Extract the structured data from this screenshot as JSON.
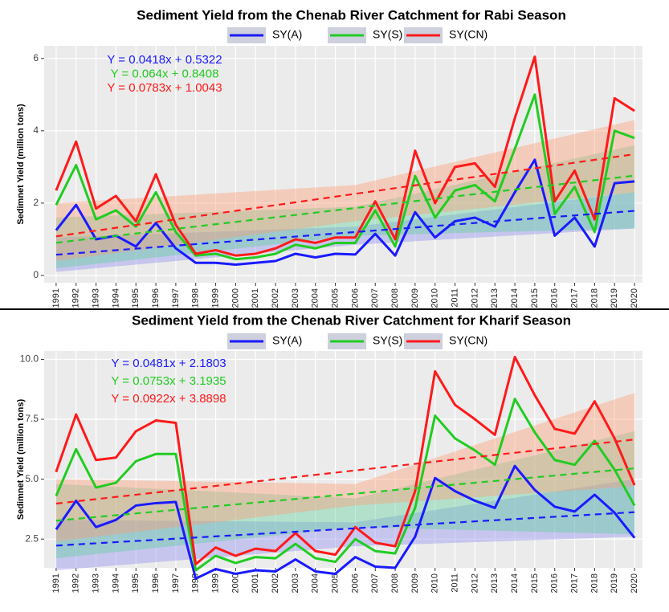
{
  "chart_data": [
    {
      "type": "line",
      "title": "Sediment Yield from the Chenab River Catchment for Rabi Season",
      "y_label": "Sedimnet Yield (million tons)",
      "x": [
        1991,
        1992,
        1993,
        1994,
        1995,
        1996,
        1997,
        1998,
        1999,
        2000,
        2001,
        2002,
        2003,
        2004,
        2005,
        2006,
        2007,
        2008,
        2009,
        2010,
        2011,
        2012,
        2013,
        2014,
        2015,
        2016,
        2017,
        2018,
        2019,
        2020
      ],
      "xlim": [
        1990.4,
        2020.4
      ],
      "xticks": [
        1991,
        1992,
        1993,
        1994,
        1995,
        1996,
        1997,
        1998,
        1999,
        2000,
        2001,
        2002,
        2003,
        2004,
        2005,
        2006,
        2007,
        2008,
        2009,
        2010,
        2011,
        2012,
        2013,
        2014,
        2015,
        2016,
        2017,
        2018,
        2019,
        2020
      ],
      "ylim": [
        -0.2,
        6.35
      ],
      "yticks": [
        0,
        2,
        4,
        6
      ],
      "grid": true,
      "trend_x": [
        1991,
        2020
      ],
      "band_x": [
        1991,
        2006,
        2020
      ],
      "annotations": [
        "Y = 0.0418x + 0.5322",
        "Y = 0.064x + 0.8408",
        "Y = 0.0783x + 1.0043"
      ],
      "series": [
        {
          "name": "SY(A)",
          "color": "#1a1aff",
          "band_color": "#8c8cf0",
          "values": [
            1.25,
            1.95,
            1.0,
            1.1,
            0.8,
            1.45,
            0.75,
            0.35,
            0.35,
            0.3,
            0.35,
            0.4,
            0.6,
            0.5,
            0.6,
            0.58,
            1.15,
            0.55,
            1.75,
            1.05,
            1.5,
            1.6,
            1.35,
            2.3,
            3.2,
            1.1,
            1.6,
            0.8,
            2.55,
            2.6
          ],
          "trend": [
            0.574,
            1.7862
          ],
          "band_lower": [
            0.1,
            0.85,
            1.3
          ],
          "band_upper": [
            1.05,
            1.35,
            2.3
          ]
        },
        {
          "name": "SY(S)",
          "color": "#22cc22",
          "band_color": "#5ccf9a",
          "values": [
            1.95,
            3.05,
            1.55,
            1.8,
            1.35,
            2.3,
            1.2,
            0.55,
            0.6,
            0.45,
            0.5,
            0.6,
            0.85,
            0.75,
            0.9,
            0.9,
            1.8,
            0.8,
            2.75,
            1.6,
            2.35,
            2.5,
            2.05,
            3.5,
            5.0,
            1.7,
            2.45,
            1.2,
            4.0,
            3.8
          ],
          "trend": [
            0.9048,
            2.7608
          ],
          "band_lower": [
            0.2,
            1.1,
            1.3
          ],
          "band_upper": [
            1.6,
            1.9,
            3.6
          ]
        },
        {
          "name": "SY(CN)",
          "color": "#ff1a1a",
          "band_color": "#ff9a72",
          "values": [
            2.35,
            3.7,
            1.85,
            2.2,
            1.5,
            2.8,
            1.4,
            0.6,
            0.7,
            0.55,
            0.6,
            0.75,
            1.0,
            0.9,
            1.05,
            1.05,
            2.05,
            1.0,
            3.45,
            2.0,
            3.0,
            3.1,
            2.45,
            4.35,
            6.05,
            2.05,
            2.9,
            1.55,
            4.9,
            4.55
          ],
          "trend": [
            1.0826,
            3.3533
          ],
          "band_lower": [
            0.4,
            1.5,
            2.3
          ],
          "band_upper": [
            2.0,
            2.5,
            4.3
          ]
        }
      ]
    },
    {
      "type": "line",
      "title": "Sediment Yield from the Chenab River Catchment for Kharif Season",
      "y_label": "Sedimnet Yield (million tons)",
      "x": [
        1991,
        1992,
        1993,
        1994,
        1995,
        1996,
        1997,
        1998,
        1999,
        2000,
        2001,
        2002,
        2003,
        2004,
        2005,
        2006,
        2007,
        2008,
        2009,
        2010,
        2011,
        2012,
        2013,
        2014,
        2015,
        2016,
        2017,
        2018,
        2019,
        2020
      ],
      "xlim": [
        1990.4,
        2020.4
      ],
      "xticks": [
        1991,
        1992,
        1993,
        1994,
        1995,
        1996,
        1997,
        1998,
        1999,
        2000,
        2001,
        2002,
        2003,
        2004,
        2005,
        2006,
        2007,
        2008,
        2009,
        2010,
        2011,
        2012,
        2013,
        2014,
        2015,
        2016,
        2017,
        2018,
        2019,
        2020
      ],
      "ylim": [
        1.3,
        10.35
      ],
      "yticks": [
        2.5,
        {
          "value": 5,
          "label": "5.0"
        },
        7.5,
        {
          "value": 10,
          "label": "10.0"
        }
      ],
      "grid": true,
      "trend_x": [
        1991,
        2020
      ],
      "band_x": [
        1991,
        2006,
        2020
      ],
      "annotations": [
        "Y = 0.0481x + 2.1803",
        "Y = 0.0753x + 3.1935",
        "Y = 0.0922x + 3.8898"
      ],
      "series": [
        {
          "name": "SY(A)",
          "color": "#1a1aff",
          "band_color": "#8c8cf0",
          "values": [
            2.9,
            4.1,
            3.0,
            3.3,
            3.9,
            4.0,
            4.05,
            0.85,
            1.25,
            1.05,
            1.2,
            1.15,
            1.65,
            1.15,
            1.05,
            1.75,
            1.35,
            1.3,
            2.6,
            5.05,
            4.5,
            4.1,
            3.8,
            5.55,
            4.55,
            3.85,
            3.65,
            4.35,
            3.6,
            2.55
          ],
          "trend": [
            2.2284,
            3.6233
          ],
          "band_lower": [
            1.2,
            2.2,
            2.6
          ],
          "band_upper": [
            3.3,
            3.2,
            5.0
          ]
        },
        {
          "name": "SY(S)",
          "color": "#22cc22",
          "band_color": "#5ccf9a",
          "values": [
            4.3,
            6.25,
            4.65,
            4.85,
            5.75,
            6.05,
            6.05,
            1.2,
            1.8,
            1.5,
            1.75,
            1.7,
            2.3,
            1.7,
            1.55,
            2.5,
            2.0,
            1.9,
            3.8,
            7.65,
            6.7,
            6.2,
            5.6,
            8.35,
            6.95,
            5.8,
            5.6,
            6.6,
            5.4,
            3.9
          ],
          "trend": [
            3.2688,
            5.4525
          ],
          "band_lower": [
            1.7,
            3.0,
            2.7
          ],
          "band_upper": [
            4.8,
            4.2,
            7.0
          ]
        },
        {
          "name": "SY(CN)",
          "color": "#ff1a1a",
          "band_color": "#ff9a72",
          "values": [
            5.3,
            7.7,
            5.8,
            5.9,
            7.0,
            7.45,
            7.35,
            1.45,
            2.15,
            1.8,
            2.1,
            2.0,
            2.75,
            2.0,
            1.85,
            3.0,
            2.35,
            2.2,
            4.5,
            9.5,
            8.1,
            7.5,
            6.85,
            10.1,
            8.5,
            7.1,
            6.9,
            8.25,
            6.7,
            4.75
          ],
          "trend": [
            3.982,
            6.6558
          ],
          "band_lower": [
            2.4,
            3.9,
            4.7
          ],
          "band_upper": [
            5.0,
            4.8,
            8.6
          ]
        }
      ]
    }
  ]
}
